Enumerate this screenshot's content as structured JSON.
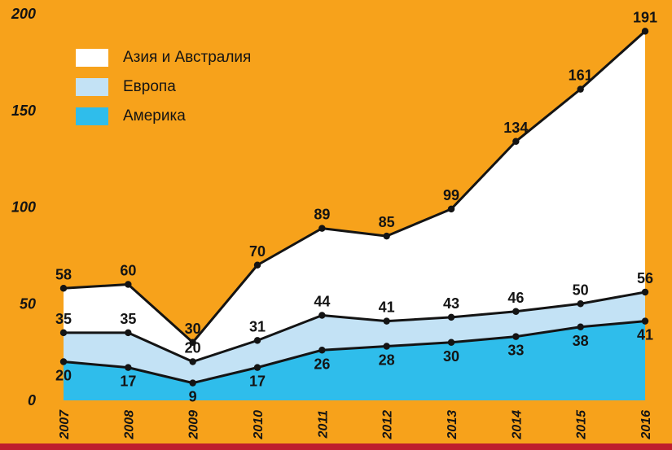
{
  "page": {
    "background": "#F7A21B",
    "bottom_bar_color": "#BE1E2D"
  },
  "chart_data": {
    "type": "area",
    "stacked": true,
    "title": "",
    "xlabel": "",
    "ylabel": "",
    "x": [
      "2007",
      "2008",
      "2009",
      "2010",
      "2011",
      "2012",
      "2013",
      "2014",
      "2015",
      "2016"
    ],
    "ylim": [
      0,
      200
    ],
    "yticks": [
      0,
      50,
      100,
      150,
      200
    ],
    "grid": false,
    "line_color": "#141414",
    "label_color": "#141414",
    "series_note": "values are the cumulative stacked line positions as labeled on the chart",
    "series": [
      {
        "name": "Америка",
        "values": [
          20,
          17,
          9,
          17,
          26,
          28,
          30,
          33,
          38,
          41
        ],
        "color": "#2FBDEB",
        "label_position": "below"
      },
      {
        "name": "Европа",
        "values": [
          35,
          35,
          20,
          31,
          44,
          41,
          43,
          46,
          50,
          56
        ],
        "color": "#C3E2F5",
        "label_position": "above"
      },
      {
        "name": "Азия и Австралия",
        "values": [
          58,
          60,
          30,
          70,
          89,
          85,
          99,
          134,
          161,
          191
        ],
        "color": "#FFFFFF",
        "label_position": "above"
      }
    ],
    "legend_position": "top-left",
    "legend": [
      {
        "label": "Азия и Австралия",
        "color": "#FFFFFF"
      },
      {
        "label": "Европа",
        "color": "#C3E2F5"
      },
      {
        "label": "Америка",
        "color": "#2FBDEB"
      }
    ]
  }
}
